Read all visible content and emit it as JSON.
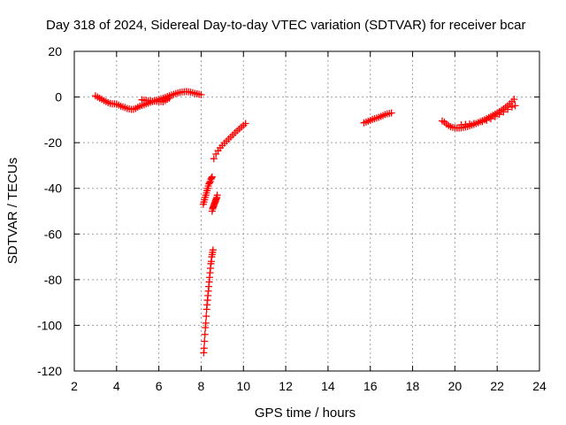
{
  "chart_data": {
    "type": "scatter",
    "title": "Day 318 of 2024, Sidereal Day-to-day VTEC variation (SDTVAR) for receiver bcar",
    "xlabel": "GPS time / hours",
    "ylabel": "SDTVAR / TECUs",
    "xlim": [
      2,
      24
    ],
    "ylim": [
      -120,
      20
    ],
    "xticks": [
      2,
      4,
      6,
      8,
      10,
      12,
      14,
      16,
      18,
      20,
      22,
      24
    ],
    "yticks": [
      -120,
      -100,
      -80,
      -60,
      -40,
      -20,
      0,
      20
    ],
    "grid": true,
    "marker": "+",
    "colors": {
      "series": "#ff0000",
      "grid": "#a0a0a0",
      "axes": "#000000"
    },
    "series": [
      {
        "name": "seg1",
        "x": [
          3.0,
          3.1,
          3.2,
          3.3,
          3.4,
          3.5,
          3.6,
          3.7,
          3.8,
          3.9,
          4.0,
          4.1,
          4.2,
          4.3,
          4.4,
          4.5,
          4.6,
          4.7,
          4.8,
          4.9,
          5.0,
          5.1,
          5.2,
          5.3,
          5.4,
          5.5,
          5.6,
          5.7,
          5.8,
          5.9,
          6.0,
          6.1,
          6.2,
          6.3,
          6.4,
          6.5,
          6.6,
          6.7,
          6.8,
          6.9,
          7.0,
          7.1,
          7.2,
          7.3,
          7.4,
          7.5,
          7.6,
          7.7,
          7.8,
          7.9,
          8.0
        ],
        "y": [
          0.5,
          0,
          -0.5,
          -1,
          -1.5,
          -2,
          -2.5,
          -2.8,
          -3,
          -3,
          -3.2,
          -3.5,
          -4,
          -4.3,
          -4.6,
          -5,
          -5.2,
          -5.4,
          -5.4,
          -5,
          -4.5,
          -4,
          -3.7,
          -3.4,
          -3,
          -2.7,
          -2.3,
          -2,
          -1.7,
          -1.4,
          -1.1,
          -0.8,
          -0.5,
          -0.2,
          0.2,
          0.5,
          0.9,
          1.2,
          1.5,
          1.8,
          2.0,
          2.2,
          2.3,
          2.4,
          2.3,
          2.1,
          1.9,
          1.6,
          1.4,
          1.2,
          1.0
        ]
      },
      {
        "name": "seg1b",
        "x": [
          5.2,
          5.3,
          5.4,
          5.5,
          5.6,
          5.7,
          5.8,
          5.9,
          6.0,
          6.1,
          6.2,
          6.3,
          6.4,
          6.5
        ],
        "y": [
          -1.2,
          -1.4,
          -1.5,
          -1.6,
          -1.7,
          -1.8,
          -1.8,
          -1.9,
          -2.0,
          -2.0,
          -2.1,
          -1.5,
          -1.0,
          -0.5
        ]
      },
      {
        "name": "seg2",
        "x": [
          8.1,
          8.13,
          8.16,
          8.19,
          8.22,
          8.25,
          8.28,
          8.31,
          8.34,
          8.37,
          8.4,
          8.43,
          8.46,
          8.49,
          8.52
        ],
        "y": [
          -47,
          -46,
          -45,
          -44,
          -43,
          -42,
          -41,
          -40,
          -39,
          -38,
          -37.5,
          -37,
          -36,
          -35.5,
          -35
        ]
      },
      {
        "name": "seg3",
        "x": [
          8.12,
          8.14,
          8.16,
          8.18,
          8.2,
          8.22,
          8.24,
          8.26,
          8.28,
          8.3,
          8.32,
          8.34,
          8.36,
          8.38,
          8.4,
          8.42,
          8.44,
          8.46,
          8.48,
          8.5,
          8.52,
          8.54,
          8.56
        ],
        "y": [
          -112,
          -110,
          -107,
          -104,
          -101,
          -99,
          -96,
          -93,
          -91,
          -89,
          -87,
          -85,
          -83,
          -81,
          -79,
          -77,
          -75,
          -73,
          -72,
          -70,
          -69,
          -68,
          -67
        ]
      },
      {
        "name": "seg4",
        "x": [
          8.52,
          8.54,
          8.56,
          8.58,
          8.6,
          8.62,
          8.64,
          8.66,
          8.68,
          8.7,
          8.72,
          8.74,
          8.76
        ],
        "y": [
          -50,
          -49,
          -48.5,
          -48,
          -47.5,
          -47,
          -46.5,
          -46,
          -45.5,
          -45,
          -44.5,
          -44,
          -43
        ]
      },
      {
        "name": "seg5",
        "x": [
          8.6,
          8.7,
          8.8,
          8.9,
          9.0,
          9.1,
          9.2,
          9.3,
          9.4,
          9.5,
          9.6,
          9.7,
          9.8,
          9.9,
          10.0,
          10.1
        ],
        "y": [
          -27,
          -25,
          -23.5,
          -22.3,
          -21.2,
          -20.2,
          -19.3,
          -18.4,
          -17.5,
          -16.6,
          -15.7,
          -14.8,
          -14,
          -13.2,
          -12.4,
          -11.6
        ]
      },
      {
        "name": "seg6",
        "x": [
          15.7,
          15.8,
          15.9,
          16.0,
          16.1,
          16.2,
          16.3,
          16.4,
          16.5,
          16.6,
          16.7,
          16.8,
          16.9,
          17.0
        ],
        "y": [
          -11.3,
          -11,
          -10.6,
          -10.2,
          -9.8,
          -9.5,
          -9.2,
          -8.9,
          -8.5,
          -8.1,
          -7.7,
          -7.4,
          -7.2,
          -7.0
        ]
      },
      {
        "name": "seg7",
        "x": [
          19.4,
          19.5,
          19.6,
          19.7,
          19.8,
          19.9,
          20.0,
          20.1,
          20.2,
          20.3,
          20.4,
          20.5,
          20.6,
          20.7,
          20.8,
          20.9,
          21.0,
          21.1,
          21.2,
          21.3,
          21.4,
          21.5,
          21.6,
          21.7,
          21.8,
          21.9,
          22.0,
          22.1,
          22.2,
          22.3,
          22.4,
          22.5,
          22.6,
          22.7,
          22.8
        ],
        "y": [
          -10.5,
          -11,
          -11.8,
          -12.5,
          -13,
          -13.3,
          -13.5,
          -13.6,
          -13.6,
          -13.5,
          -13.3,
          -13.1,
          -12.9,
          -12.6,
          -12.3,
          -12,
          -11.6,
          -11.2,
          -10.8,
          -10.4,
          -10,
          -9.5,
          -9,
          -8.5,
          -8,
          -7.5,
          -7,
          -6.4,
          -5.8,
          -5.2,
          -4.5,
          -3.8,
          -3,
          -2,
          -1
        ]
      },
      {
        "name": "seg7b",
        "x": [
          20.3,
          20.5,
          20.7,
          20.9,
          21.1,
          21.3,
          21.5,
          21.7,
          21.9,
          22.1,
          22.3,
          22.5,
          22.7,
          22.85
        ],
        "y": [
          -12.2,
          -12,
          -11.8,
          -11.6,
          -11.2,
          -10.8,
          -10.2,
          -9.5,
          -8.6,
          -7.6,
          -6.5,
          -5.4,
          -4.4,
          -3.8
        ]
      }
    ]
  }
}
